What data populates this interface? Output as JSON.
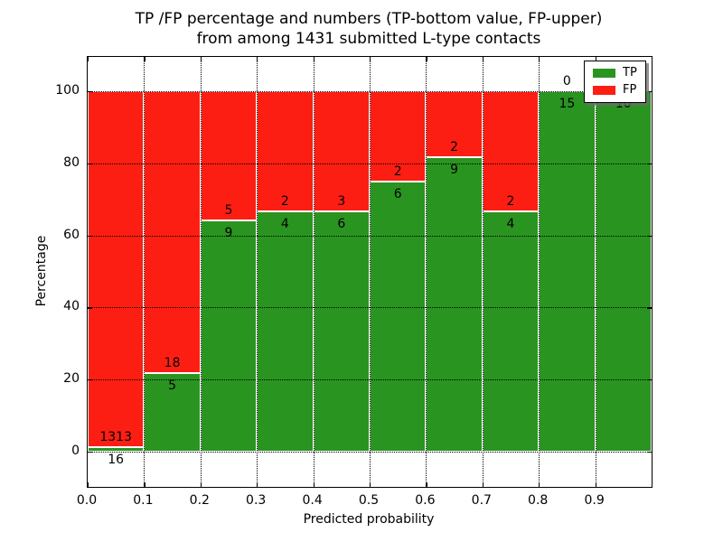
{
  "chart_data": {
    "type": "bar",
    "stacked": true,
    "normalized_to_percent": true,
    "title_line1": "TP /FP percentage and numbers (TP-bottom value, FP-upper)",
    "title_line2": "from among 1431 submitted L-type contacts",
    "total_submitted": 1431,
    "xlabel": "Predicted probability",
    "ylabel": "Percentage",
    "x_tick_labels": [
      "0.0",
      "0.1",
      "0.2",
      "0.3",
      "0.4",
      "0.5",
      "0.6",
      "0.7",
      "0.8",
      "0.9"
    ],
    "y_tick_labels": [
      "0",
      "20",
      "40",
      "60",
      "80",
      "100"
    ],
    "xlim": [
      0.0,
      1.0
    ],
    "ylim_display": [
      0,
      100
    ],
    "grid": "dotted",
    "bin_width": 0.1,
    "bins": [
      {
        "x_start": 0.0,
        "x_end": 0.1,
        "tp": 16,
        "fp": 1313
      },
      {
        "x_start": 0.1,
        "x_end": 0.2,
        "tp": 5,
        "fp": 18
      },
      {
        "x_start": 0.2,
        "x_end": 0.3,
        "tp": 9,
        "fp": 5
      },
      {
        "x_start": 0.3,
        "x_end": 0.4,
        "tp": 4,
        "fp": 2
      },
      {
        "x_start": 0.4,
        "x_end": 0.5,
        "tp": 6,
        "fp": 3
      },
      {
        "x_start": 0.5,
        "x_end": 0.6,
        "tp": 6,
        "fp": 2
      },
      {
        "x_start": 0.6,
        "x_end": 0.7,
        "tp": 9,
        "fp": 2
      },
      {
        "x_start": 0.7,
        "x_end": 0.8,
        "tp": 4,
        "fp": 2
      },
      {
        "x_start": 0.8,
        "x_end": 0.9,
        "tp": 15,
        "fp": 0
      },
      {
        "x_start": 0.9,
        "x_end": 1.0,
        "tp": 10,
        "fp": 0
      }
    ],
    "colors": {
      "tp": "#2a9421",
      "fp": "#fd1e13"
    },
    "legend": {
      "position": "upper right",
      "entries": [
        {
          "label": "TP",
          "color": "#2a9421"
        },
        {
          "label": "FP",
          "color": "#fd1e13"
        }
      ]
    }
  }
}
